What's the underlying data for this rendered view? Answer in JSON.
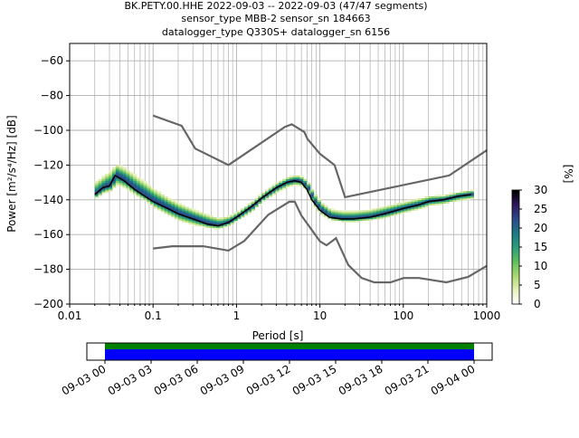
{
  "chart_data": {
    "type": "heatmap",
    "title_lines": [
      "BK.PETY.00.HHE   2022-09-03 -- 2022-09-03  (47/47 segments)",
      "sensor_type MBB-2 sensor_sn 184663",
      "datalogger_type Q330S+ datalogger_sn 6156"
    ],
    "xlabel": "Period [s]",
    "ylabel": "Power [m²/s⁴/Hz] [dB]",
    "x_scale": "log",
    "xlim": [
      0.01,
      1000
    ],
    "ylim": [
      -200,
      -50
    ],
    "x_ticks": [
      0.01,
      0.1,
      1,
      10,
      100,
      1000
    ],
    "x_tick_labels": [
      "0.01",
      "0.1",
      "1",
      "10",
      "100",
      "1000"
    ],
    "y_ticks": [
      -200,
      -180,
      -160,
      -140,
      -120,
      -100,
      -80,
      -60
    ],
    "y_tick_labels": [
      "−200",
      "−180",
      "−160",
      "−140",
      "−120",
      "−100",
      "−80",
      "−60"
    ],
    "grid": true,
    "colorbar": {
      "label": "[%]",
      "range": [
        0,
        30
      ],
      "ticks": [
        0,
        5,
        10,
        15,
        20,
        25,
        30
      ],
      "colormap": [
        "#ffffff",
        "#e4f1b8",
        "#a9d870",
        "#5dbf5e",
        "#2a9f7a",
        "#1d7a86",
        "#2b4b8a",
        "#30195e",
        "#000000"
      ]
    },
    "noise_model_high": {
      "x": [
        0.1,
        0.22,
        0.32,
        0.8,
        3.8,
        4.6,
        6.5,
        7.1,
        10,
        15,
        20,
        354.8,
        1000
      ],
      "y": [
        -91.5,
        -97.4,
        -110.5,
        -120,
        -98.0,
        -96.5,
        -101.0,
        -105.0,
        -113.5,
        -120,
        -138.5,
        -126.0,
        -111.5
      ]
    },
    "noise_model_low": {
      "x": [
        0.1,
        0.17,
        0.4,
        0.8,
        1.24,
        2.4,
        4.3,
        5,
        6,
        10,
        12,
        15.6,
        21.9,
        31.6,
        45,
        70,
        101,
        154,
        328,
        600,
        1000
      ],
      "y": [
        -168,
        -166.7,
        -166.7,
        -169.2,
        -163.7,
        -148.6,
        -141.1,
        -141.1,
        -149.0,
        -163.8,
        -166.2,
        -162.1,
        -177.5,
        -185.0,
        -187.5,
        -187.5,
        -185.0,
        -185.0,
        -187.5,
        -184.4,
        -178.0
      ]
    },
    "mode_curve": {
      "x": [
        0.02,
        0.025,
        0.03,
        0.035,
        0.045,
        0.06,
        0.08,
        0.1,
        0.15,
        0.2,
        0.3,
        0.45,
        0.6,
        0.8,
        1.0,
        1.5,
        2.0,
        3.0,
        4.0,
        5.0,
        6.0,
        7.0,
        8.0,
        10,
        13,
        18,
        25,
        40,
        60,
        100,
        150,
        200,
        300,
        450,
        650
      ],
      "y": [
        -137,
        -133,
        -132,
        -126,
        -129,
        -134,
        -138,
        -141,
        -145,
        -148,
        -151,
        -154,
        -155,
        -153,
        -150,
        -144,
        -139,
        -133,
        -130,
        -129,
        -130,
        -134,
        -140,
        -146,
        -150,
        -151,
        -151,
        -150,
        -148,
        -145,
        -143,
        -141,
        -140,
        -138,
        -137
      ]
    },
    "spread_low": [
      -139,
      -137,
      -136,
      -134,
      -135,
      -139,
      -142,
      -146,
      -151,
      -154,
      -156,
      -157,
      -157,
      -155,
      -152,
      -147,
      -141,
      -136,
      -133,
      -132,
      -133,
      -137,
      -144,
      -149,
      -152,
      -153,
      -153,
      -152,
      -151,
      -148,
      -146,
      -144,
      -143,
      -141,
      -140
    ],
    "spread_high": [
      -127,
      -124,
      -120,
      -118,
      -120,
      -124,
      -128,
      -132,
      -138,
      -141,
      -145,
      -148,
      -150,
      -149,
      -147,
      -141,
      -136,
      -130,
      -127,
      -126,
      -127,
      -130,
      -135,
      -141,
      -145,
      -146,
      -146,
      -145,
      -143,
      -141,
      -139,
      -138,
      -138,
      -136,
      -135
    ],
    "timeline": {
      "labels": [
        "09-03 00",
        "09-03 03",
        "09-03 06",
        "09-03 09",
        "09-03 12",
        "09-03 15",
        "09-03 18",
        "09-03 21",
        "09-04 00"
      ],
      "coverage_color": "#0000ff",
      "data_color": "#008000"
    }
  }
}
